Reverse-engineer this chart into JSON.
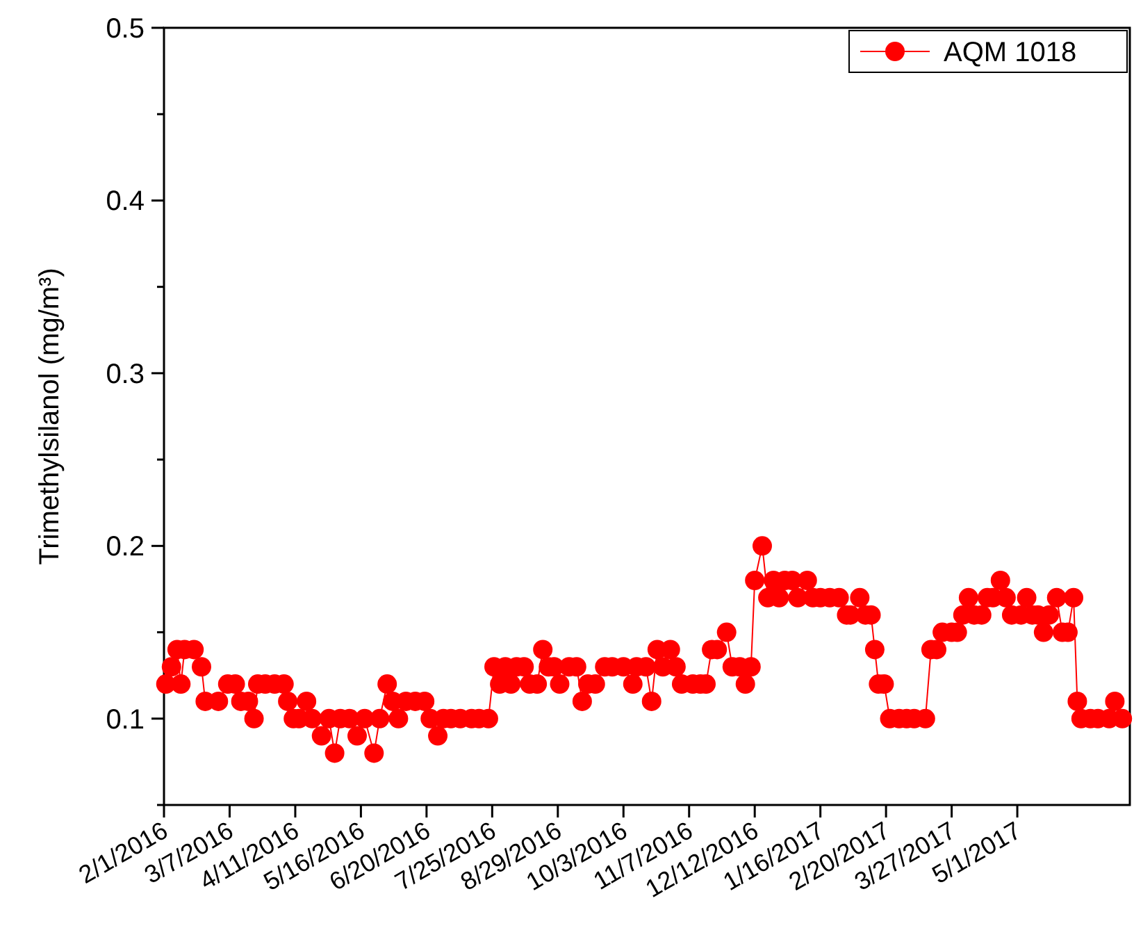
{
  "chart_data": {
    "type": "line",
    "ylabel": "Trimethylsilanol (mg/m³)",
    "xlim": [
      "2016-02-01",
      "2017-06-30"
    ],
    "ylim": [
      0.05,
      0.5
    ],
    "xticks": [
      {
        "value": "2016-02-01",
        "label": "2/1/2016"
      },
      {
        "value": "2016-03-07",
        "label": "3/7/2016"
      },
      {
        "value": "2016-04-11",
        "label": "4/11/2016"
      },
      {
        "value": "2016-05-16",
        "label": "5/16/2016"
      },
      {
        "value": "2016-06-20",
        "label": "6/20/2016"
      },
      {
        "value": "2016-07-25",
        "label": "7/25/2016"
      },
      {
        "value": "2016-08-29",
        "label": "8/29/2016"
      },
      {
        "value": "2016-10-03",
        "label": "10/3/2016"
      },
      {
        "value": "2016-11-07",
        "label": "11/7/2016"
      },
      {
        "value": "2016-12-12",
        "label": "12/12/2016"
      },
      {
        "value": "2017-01-16",
        "label": "1/16/2017"
      },
      {
        "value": "2017-02-20",
        "label": "2/20/2017"
      },
      {
        "value": "2017-03-27",
        "label": "3/27/2017"
      },
      {
        "value": "2017-05-01",
        "label": "5/1/2017"
      }
    ],
    "yticks": [
      {
        "value": 0.05,
        "label": null
      },
      0.1,
      {
        "value": 0.15,
        "label": null
      },
      0.2,
      {
        "value": 0.25,
        "label": null
      },
      0.3,
      {
        "value": 0.35,
        "label": null
      },
      0.4,
      {
        "value": 0.45,
        "label": null
      },
      0.5
    ],
    "legend": "top right",
    "marker": "circle",
    "line_style": "solid",
    "grid": false,
    "x": [
      "2016-02-02",
      "2016-02-05",
      "2016-02-08",
      "2016-02-10",
      "2016-02-12",
      "2016-02-17",
      "2016-02-21",
      "2016-02-23",
      "2016-03-01",
      "2016-03-06",
      "2016-03-10",
      "2016-03-13",
      "2016-03-17",
      "2016-03-20",
      "2016-03-22",
      "2016-03-26",
      "2016-03-31",
      "2016-04-05",
      "2016-04-07",
      "2016-04-10",
      "2016-04-13",
      "2016-04-17",
      "2016-04-20",
      "2016-04-25",
      "2016-04-29",
      "2016-05-02",
      "2016-05-05",
      "2016-05-10",
      "2016-05-14",
      "2016-05-18",
      "2016-05-23",
      "2016-05-26",
      "2016-05-30",
      "2016-06-02",
      "2016-06-05",
      "2016-06-09",
      "2016-06-14",
      "2016-06-19",
      "2016-06-22",
      "2016-06-26",
      "2016-06-29",
      "2016-07-03",
      "2016-07-08",
      "2016-07-14",
      "2016-07-18",
      "2016-07-23",
      "2016-07-26",
      "2016-07-29",
      "2016-08-01",
      "2016-08-04",
      "2016-08-07",
      "2016-08-11",
      "2016-08-14",
      "2016-08-18",
      "2016-08-21",
      "2016-08-24",
      "2016-08-27",
      "2016-08-30",
      "2016-09-04",
      "2016-09-08",
      "2016-09-11",
      "2016-09-14",
      "2016-09-18",
      "2016-09-23",
      "2016-09-27",
      "2016-10-03",
      "2016-10-08",
      "2016-10-10",
      "2016-10-15",
      "2016-10-18",
      "2016-10-21",
      "2016-10-24",
      "2016-10-28",
      "2016-10-31",
      "2016-11-03",
      "2016-11-09",
      "2016-11-13",
      "2016-11-16",
      "2016-11-19",
      "2016-11-22",
      "2016-11-27",
      "2016-11-30",
      "2016-12-04",
      "2016-12-07",
      "2016-12-10",
      "2016-12-12",
      "2016-12-16",
      "2016-12-19",
      "2016-12-22",
      "2016-12-25",
      "2016-12-28",
      "2017-01-01",
      "2017-01-04",
      "2017-01-09",
      "2017-01-12",
      "2017-01-16",
      "2017-01-21",
      "2017-01-26",
      "2017-01-30",
      "2017-02-01",
      "2017-02-06",
      "2017-02-09",
      "2017-02-12",
      "2017-02-14",
      "2017-02-16",
      "2017-02-19",
      "2017-02-22",
      "2017-02-27",
      "2017-03-03",
      "2017-03-07",
      "2017-03-13",
      "2017-03-16",
      "2017-03-19",
      "2017-03-22",
      "2017-03-27",
      "2017-03-30",
      "2017-04-02",
      "2017-04-05",
      "2017-04-08",
      "2017-04-12",
      "2017-04-15",
      "2017-04-18",
      "2017-04-22",
      "2017-04-25",
      "2017-04-28",
      "2017-05-03",
      "2017-05-06",
      "2017-05-09",
      "2017-05-12",
      "2017-05-15",
      "2017-05-18",
      "2017-05-22",
      "2017-05-25",
      "2017-05-28",
      "2017-05-31",
      "2017-06-02",
      "2017-06-04",
      "2017-06-09",
      "2017-06-13",
      "2017-06-19",
      "2017-06-22",
      "2017-06-26"
    ],
    "series": [
      {
        "name": "AQM 1018",
        "color": "#ff0000",
        "values": [
          0.12,
          0.13,
          0.14,
          0.12,
          0.14,
          0.14,
          0.13,
          0.11,
          0.11,
          0.12,
          0.12,
          0.11,
          0.11,
          0.1,
          0.12,
          0.12,
          0.12,
          0.12,
          0.11,
          0.1,
          0.1,
          0.11,
          0.1,
          0.09,
          0.1,
          0.08,
          0.1,
          0.1,
          0.09,
          0.1,
          0.08,
          0.1,
          0.12,
          0.11,
          0.1,
          0.11,
          0.11,
          0.11,
          0.1,
          0.09,
          0.1,
          0.1,
          0.1,
          0.1,
          0.1,
          0.1,
          0.13,
          0.12,
          0.13,
          0.12,
          0.13,
          0.13,
          0.12,
          0.12,
          0.14,
          0.13,
          0.13,
          0.12,
          0.13,
          0.13,
          0.11,
          0.12,
          0.12,
          0.13,
          0.13,
          0.13,
          0.12,
          0.13,
          0.13,
          0.11,
          0.14,
          0.13,
          0.14,
          0.13,
          0.12,
          0.12,
          0.12,
          0.12,
          0.14,
          0.14,
          0.15,
          0.13,
          0.13,
          0.12,
          0.13,
          0.18,
          0.2,
          0.17,
          0.18,
          0.17,
          0.18,
          0.18,
          0.17,
          0.18,
          0.17,
          0.17,
          0.17,
          0.17,
          0.16,
          0.16,
          0.17,
          0.16,
          0.16,
          0.14,
          0.12,
          0.12,
          0.1,
          0.1,
          0.1,
          0.1,
          0.1,
          0.14,
          0.14,
          0.15,
          0.15,
          0.15,
          0.16,
          0.17,
          0.16,
          0.16,
          0.17,
          0.17,
          0.18,
          0.17,
          0.16,
          0.16,
          0.17,
          0.16,
          0.16,
          0.15,
          0.16,
          0.17,
          0.15,
          0.15,
          0.17,
          0.11,
          0.1,
          0.1,
          0.1,
          0.1,
          0.11,
          0.1
        ]
      }
    ]
  }
}
